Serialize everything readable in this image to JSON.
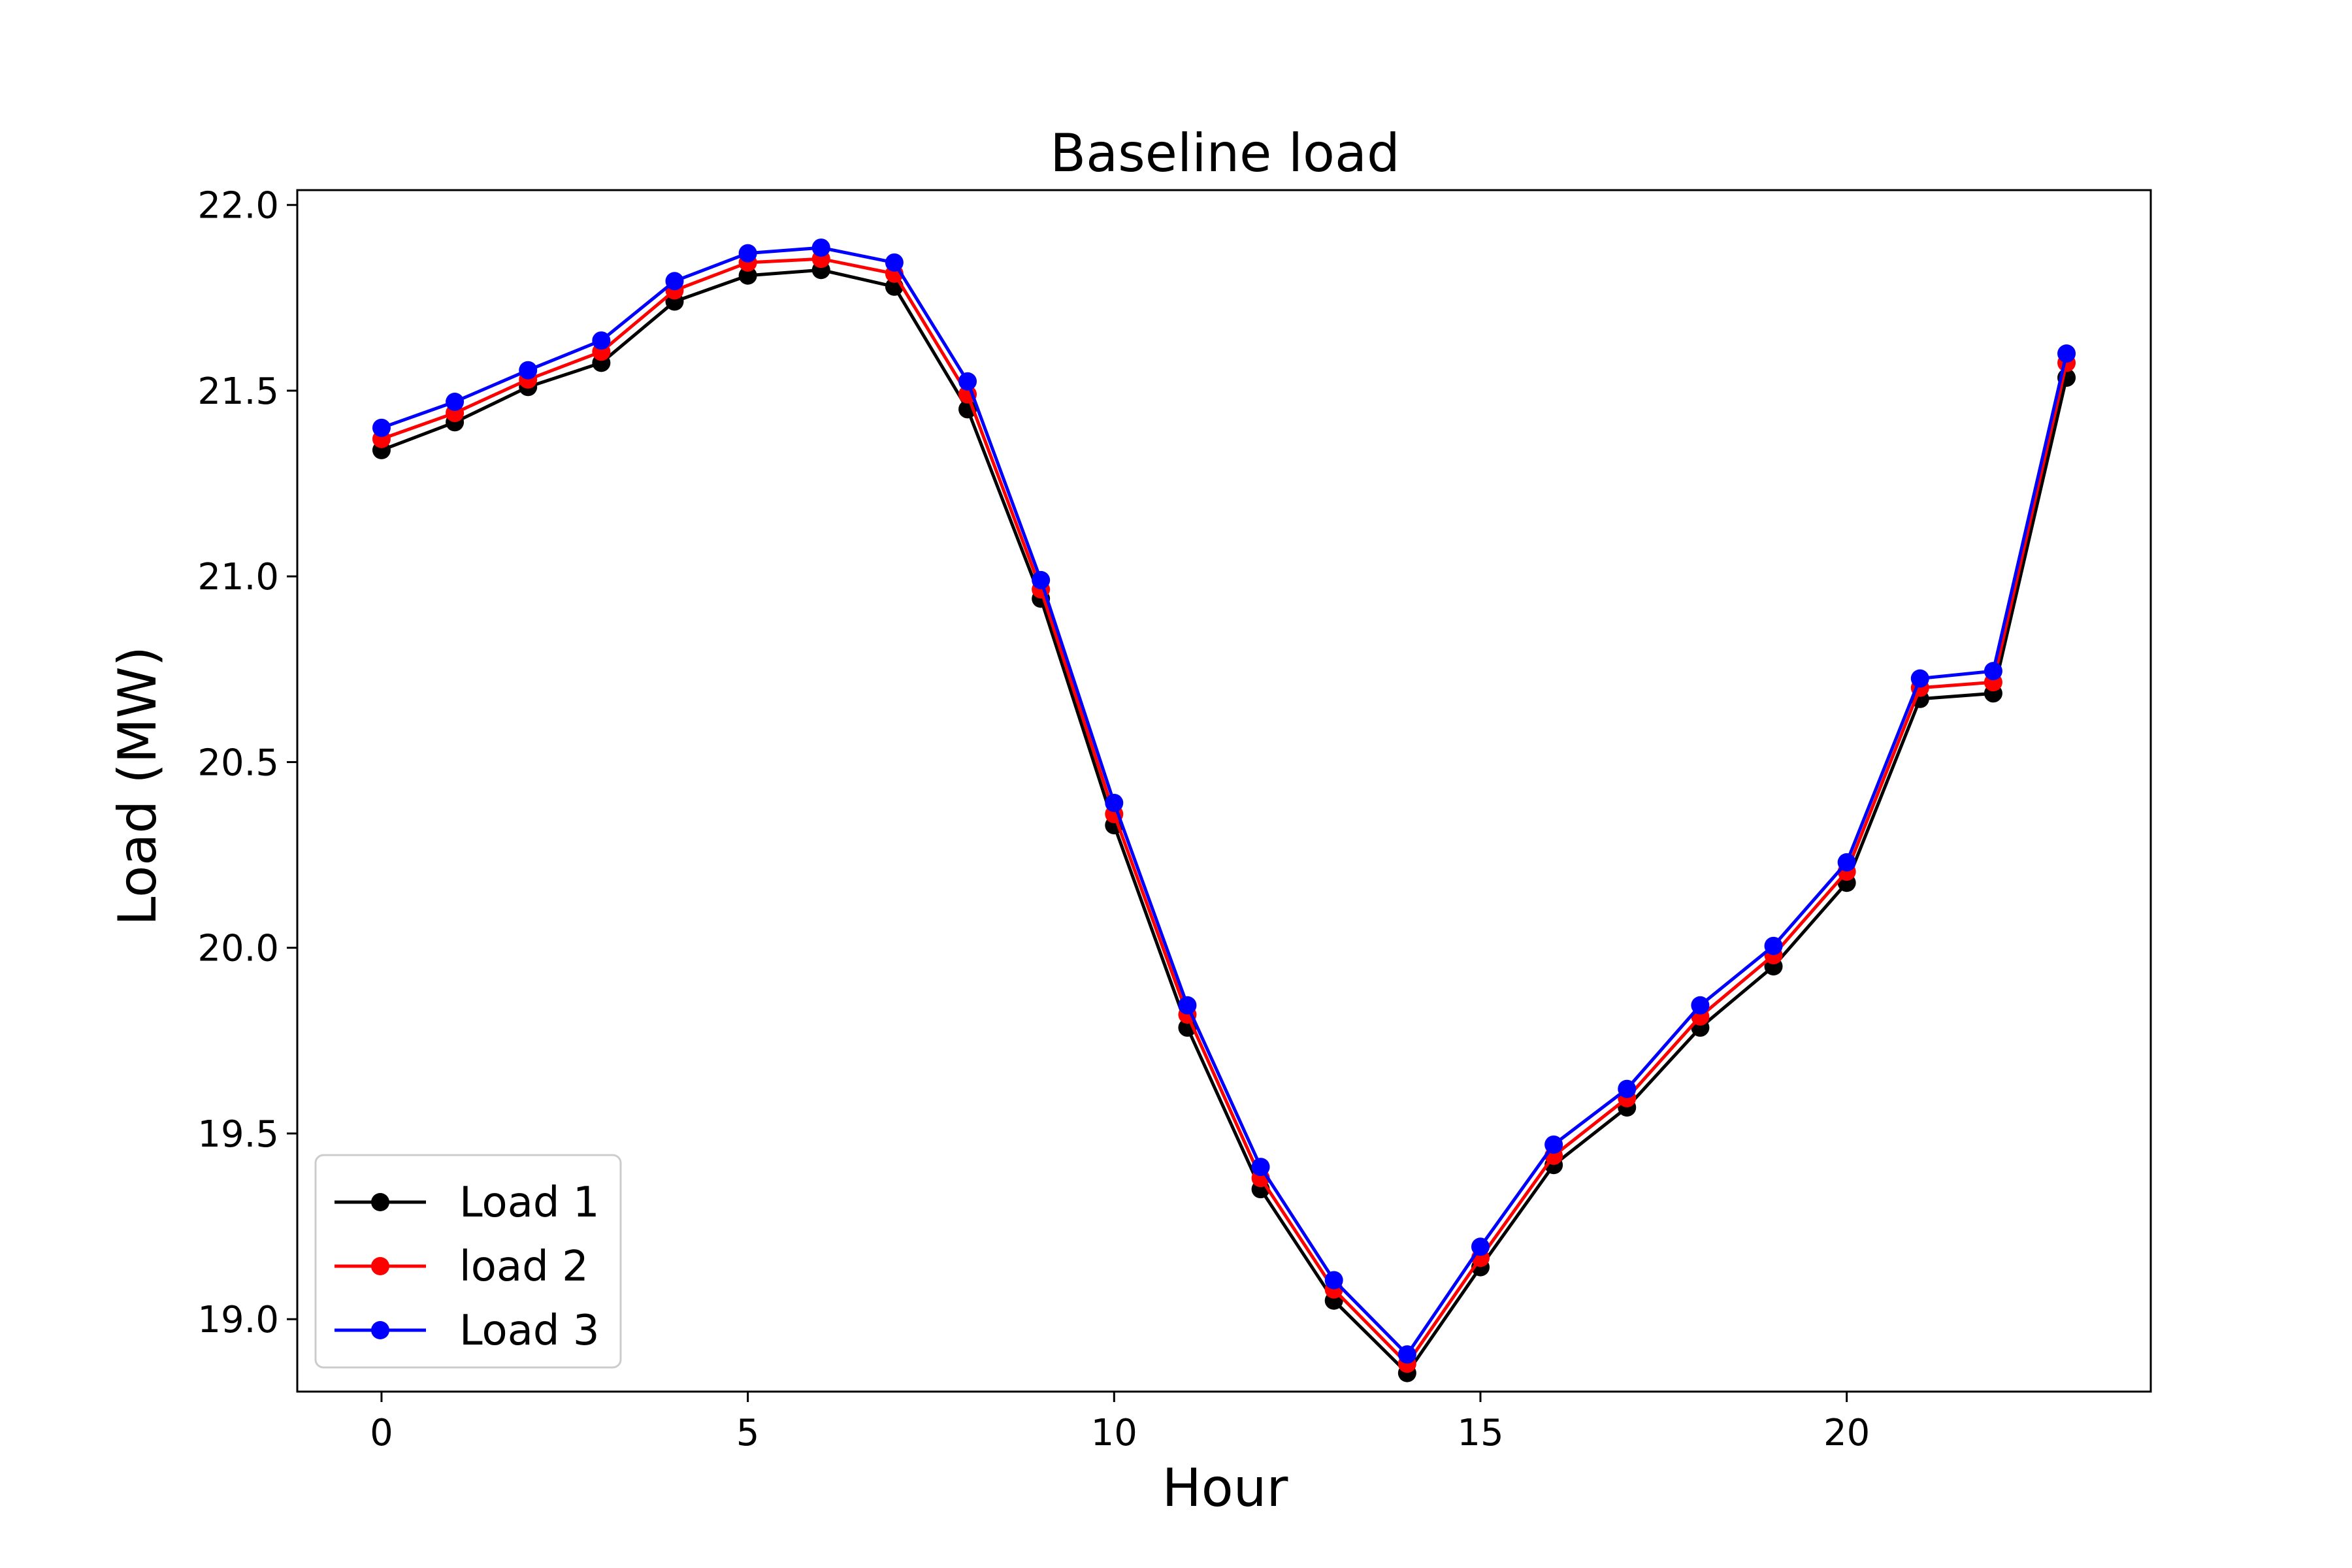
{
  "chart_data": {
    "type": "line",
    "title": "Baseline load",
    "xlabel": "Hour",
    "ylabel": "Load (MW)",
    "xlim": [
      -1.15,
      24.15
    ],
    "ylim": [
      18.805,
      22.04
    ],
    "xticks": [
      0,
      5,
      10,
      15,
      20
    ],
    "yticks": [
      19.0,
      19.5,
      20.0,
      20.5,
      21.0,
      21.5,
      22.0
    ],
    "xtick_labels": [
      "0",
      "5",
      "10",
      "15",
      "20"
    ],
    "ytick_labels": [
      "19.0",
      "19.5",
      "20.0",
      "20.5",
      "21.0",
      "21.5",
      "22.0"
    ],
    "grid": false,
    "legend_position": "lower-left",
    "x": [
      0,
      1,
      2,
      3,
      4,
      5,
      6,
      7,
      8,
      9,
      10,
      11,
      12,
      13,
      14,
      15,
      16,
      17,
      18,
      19,
      20,
      21,
      22,
      23
    ],
    "series": [
      {
        "name": "Load 1",
        "color": "#000000",
        "values": [
          21.34,
          21.415,
          21.51,
          21.575,
          21.74,
          21.81,
          21.825,
          21.78,
          21.45,
          20.94,
          20.33,
          19.785,
          19.35,
          19.05,
          18.855,
          19.14,
          19.415,
          19.57,
          19.785,
          19.95,
          20.175,
          20.67,
          20.685,
          21.535
        ]
      },
      {
        "name": "load 2",
        "color": "#ff0000",
        "values": [
          21.37,
          21.44,
          21.53,
          21.605,
          21.77,
          21.845,
          21.855,
          21.815,
          21.49,
          20.965,
          20.36,
          19.82,
          19.38,
          19.08,
          18.88,
          19.165,
          19.44,
          19.595,
          19.815,
          19.98,
          20.205,
          20.7,
          20.715,
          21.575
        ]
      },
      {
        "name": "Load 3",
        "color": "#0000ff",
        "values": [
          21.4,
          21.47,
          21.555,
          21.635,
          21.795,
          21.87,
          21.885,
          21.845,
          21.525,
          20.99,
          20.39,
          19.845,
          19.41,
          19.105,
          18.905,
          19.195,
          19.47,
          19.62,
          19.845,
          20.005,
          20.23,
          20.725,
          20.745,
          21.6
        ]
      }
    ]
  }
}
